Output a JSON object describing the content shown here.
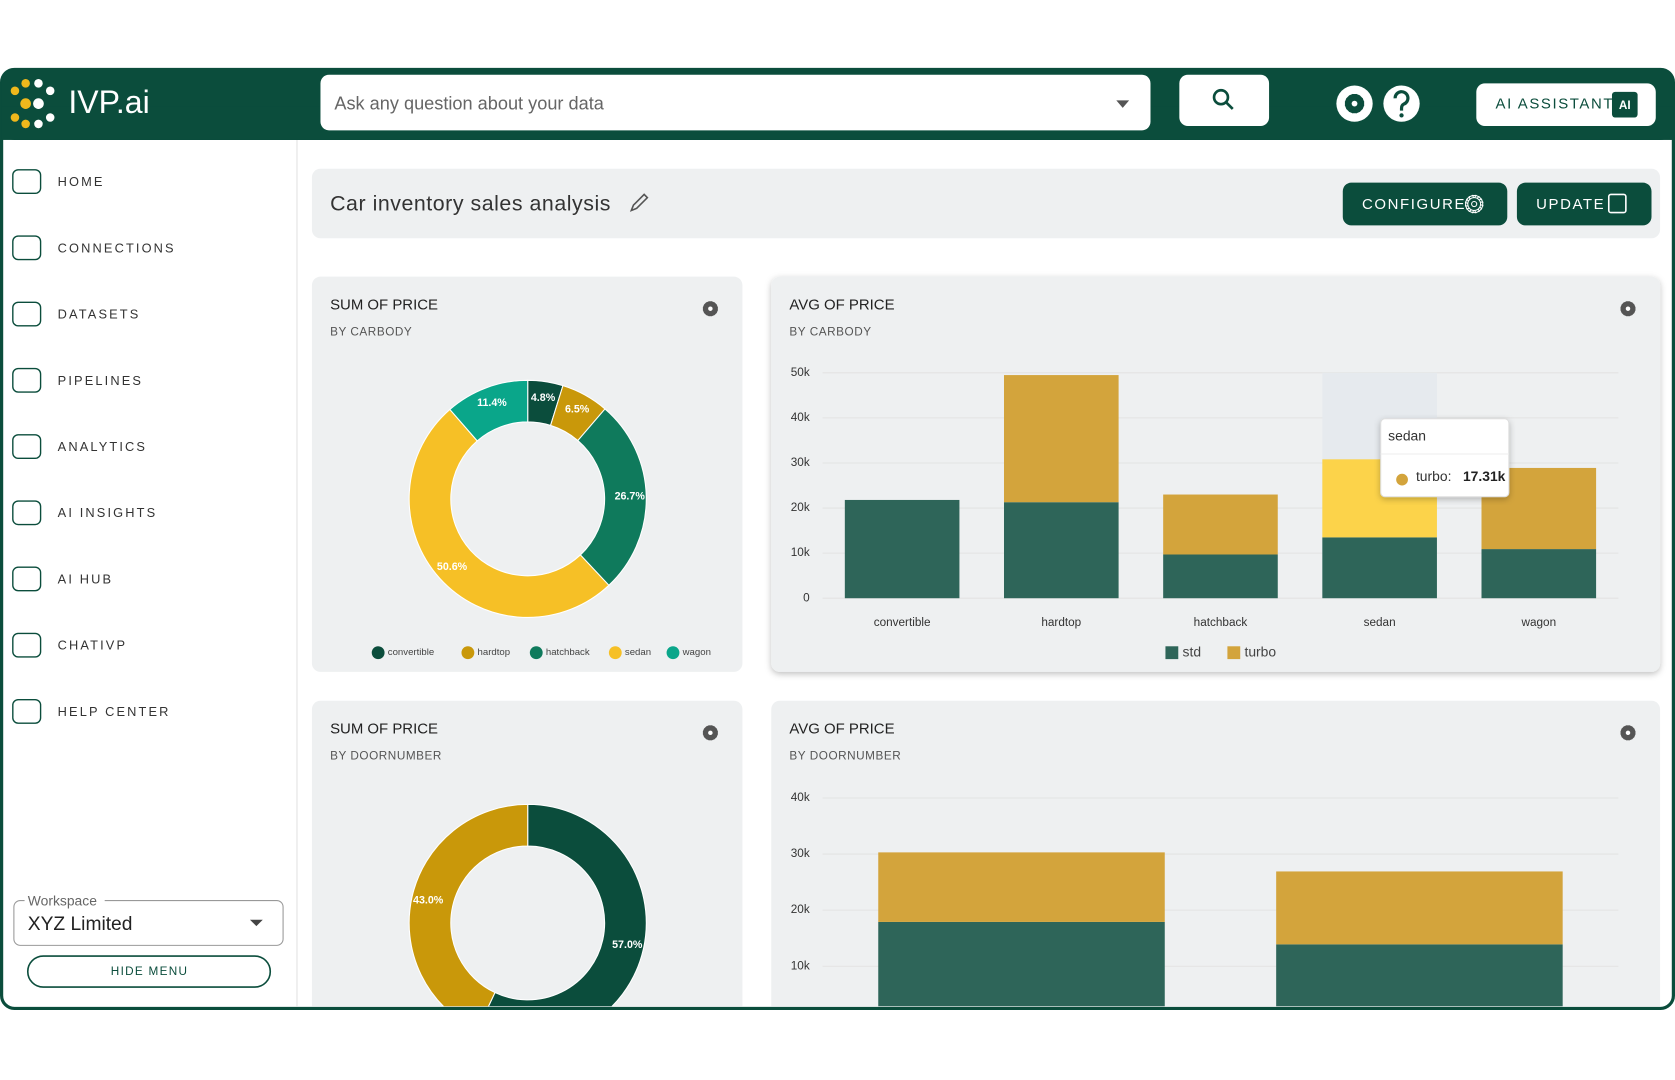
{
  "header": {
    "logo": "IVP.ai",
    "search_placeholder": "Ask any question about your data",
    "assistant_button": "AI ASSISTANT",
    "assistant_badge": "AI"
  },
  "nav": [
    "HOME",
    "CONNECTIONS",
    "DATASETS",
    "PIPELINES",
    "ANALYTICS",
    "AI INSIGHTS",
    "AI HUB",
    "CHATIVP",
    "HELP CENTER"
  ],
  "workspace": {
    "label": "Workspace",
    "value": "XYZ Limited",
    "hide_menu": "HIDE MENU"
  },
  "dashboard": {
    "title": "Car inventory sales analysis",
    "configure": "CONFIGURE",
    "update": "UPDATE"
  },
  "chart_data": [
    {
      "type": "pie",
      "title": "SUM OF PRICE",
      "subtitle": "BY CARBODY",
      "categories": [
        "convertible",
        "hardtop",
        "hatchback",
        "sedan",
        "wagon"
      ],
      "values": [
        4.8,
        6.5,
        26.7,
        50.6,
        11.4
      ],
      "value_labels": [
        "4.8%",
        "6.5%",
        "26.7%",
        "50.6%",
        "11.4%"
      ],
      "colors": [
        "#0b4d3c",
        "#c9980a",
        "#0f7a5c",
        "#f6c026",
        "#0aa68a"
      ],
      "legend": "bottom"
    },
    {
      "type": "bar",
      "stacked": true,
      "title": "AVG OF PRICE",
      "subtitle": "BY CARBODY",
      "categories": [
        "convertible",
        "hardtop",
        "hatchback",
        "sedan",
        "wagon"
      ],
      "series": [
        {
          "name": "std",
          "color": "#2e6559",
          "values": [
            21800,
            21300,
            9700,
            13500,
            10900
          ]
        },
        {
          "name": "turbo",
          "color": "#d3a43c",
          "values": [
            null,
            28200,
            13300,
            17310,
            18000
          ]
        }
      ],
      "ylim": [
        0,
        50000
      ],
      "yticks": [
        0,
        {
          "value": 10000,
          "label": "10k"
        },
        {
          "value": 20000,
          "label": "20k"
        },
        {
          "value": 30000,
          "label": "30k"
        },
        {
          "value": 40000,
          "label": "40k"
        },
        {
          "value": 50000,
          "label": "50k"
        }
      ],
      "grid": true,
      "legend": "bottom",
      "tooltip": {
        "label": "turbo:",
        "value": 17310,
        "value_label": "17.31k"
      }
    },
    {
      "type": "pie",
      "title": "SUM OF PRICE",
      "subtitle": "BY DOORNUMBER",
      "values": [
        57.0,
        43.0
      ],
      "value_labels": [
        "57.0%",
        "43.0%"
      ],
      "colors": [
        "#0b4d3c",
        "#c9980a"
      ]
    },
    {
      "type": "bar",
      "stacked": true,
      "title": "AVG OF PRICE",
      "subtitle": "BY DOORNUMBER",
      "series": [
        {
          "color": "#2e6559",
          "values": [
            17900,
            13900
          ]
        },
        {
          "color": "#d3a43c",
          "values": [
            12400,
            13000
          ]
        }
      ],
      "ylim": [
        0,
        40000
      ],
      "yticks": [
        {
          "value": 10000,
          "label": "10k"
        },
        {
          "value": 20000,
          "label": "20k"
        },
        {
          "value": 30000,
          "label": "30k"
        },
        {
          "value": 40000,
          "label": "40k"
        }
      ],
      "grid": true
    }
  ]
}
